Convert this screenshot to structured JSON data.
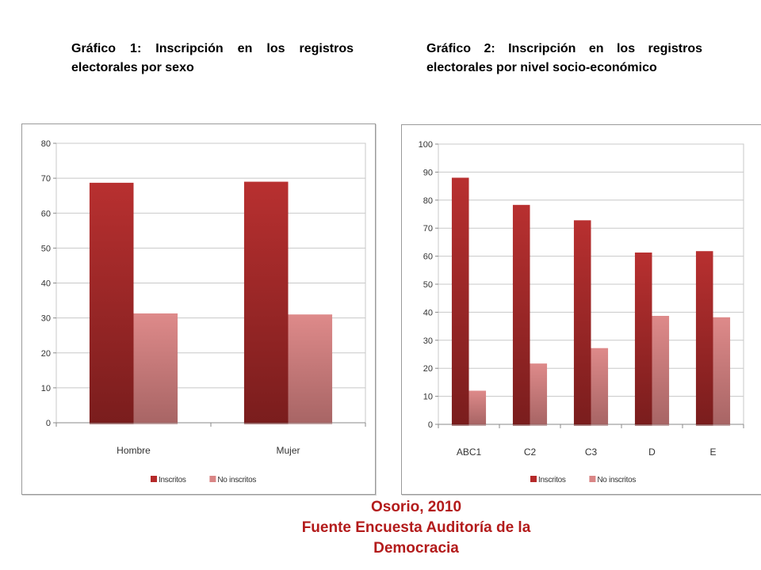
{
  "captions": {
    "chart1": "Gráfico 1: Inscripción en los registros electorales por sexo",
    "chart2": "Gráfico 2: Inscripción en los registros electorales por nivel socio-económico"
  },
  "footer": {
    "author": "Osorio, 2010",
    "source_line1": "Fuente Encuesta Auditoría de la",
    "source_line2": "Democracia"
  },
  "colors": {
    "inscritos": "#b52a2a",
    "no_inscritos": "#d98585",
    "footer_text": "#b31b1b"
  },
  "chart_data": [
    {
      "type": "bar",
      "title": "",
      "categories": [
        "Hombre",
        "Mujer"
      ],
      "series": [
        {
          "name": "Inscritos",
          "values": [
            68.7,
            69.0
          ]
        },
        {
          "name": "No inscritos",
          "values": [
            31.3,
            31.0
          ]
        }
      ],
      "ylim": [
        0,
        80
      ],
      "yticks": [
        0,
        10,
        20,
        30,
        40,
        50,
        60,
        70,
        80
      ],
      "grid": true,
      "legend": "bottom"
    },
    {
      "type": "bar",
      "title": "",
      "categories": [
        "ABC1",
        "C2",
        "C3",
        "D",
        "E"
      ],
      "series": [
        {
          "name": "Inscritos",
          "values": [
            88.0,
            78.3,
            72.8,
            61.3,
            61.8
          ]
        },
        {
          "name": "No inscritos",
          "values": [
            12.0,
            21.7,
            27.2,
            38.7,
            38.2
          ]
        }
      ],
      "ylim": [
        0,
        100
      ],
      "yticks": [
        0,
        10,
        20,
        30,
        40,
        50,
        60,
        70,
        80,
        90,
        100
      ],
      "grid": true,
      "legend": "bottom"
    }
  ]
}
